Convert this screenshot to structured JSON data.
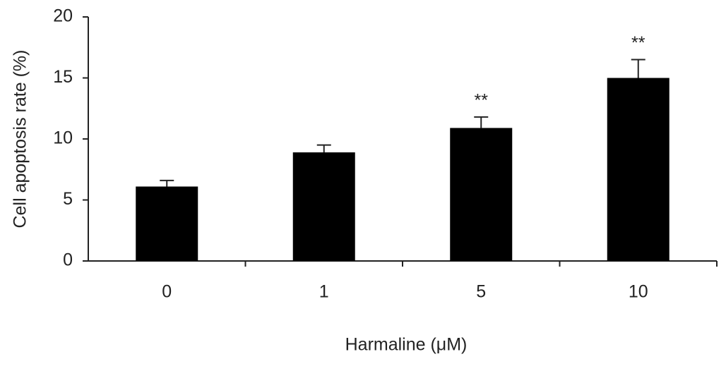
{
  "chart_data": {
    "type": "bar",
    "x_label": "Harmaline (μM)",
    "y_label": "Cell apoptosis rate (%)",
    "categories": [
      "0",
      "1",
      "5",
      "10"
    ],
    "values": [
      6.1,
      8.9,
      10.9,
      15.0
    ],
    "errors": [
      0.5,
      0.6,
      0.9,
      1.5
    ],
    "annotations": [
      null,
      null,
      "**",
      "**"
    ],
    "color": "#000000",
    "ylim": [
      0,
      20
    ],
    "yticks": [
      0,
      5,
      10,
      15,
      20
    ],
    "grid": false
  }
}
